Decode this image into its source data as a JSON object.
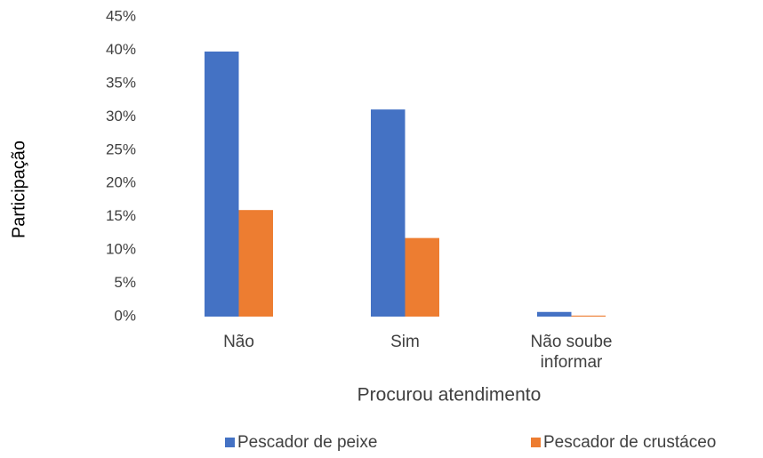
{
  "chart_data": {
    "type": "bar",
    "xlabel": "Procurou atendimento",
    "ylabel": "Participação",
    "categories": [
      "Não",
      "Sim",
      "Não soube informar"
    ],
    "series": [
      {
        "name": "Pescador de peixe",
        "color": "#4472c4",
        "values": [
          39.8,
          31.1,
          0.7
        ]
      },
      {
        "name": "Pescador de crustáceo",
        "color": "#ed7d31",
        "values": [
          16.0,
          11.8,
          0.15
        ]
      }
    ],
    "ylim": [
      0,
      45
    ],
    "yticks": [
      {
        "value": 0,
        "label": "0%"
      },
      {
        "value": 5,
        "label": "5%"
      },
      {
        "value": 10,
        "label": "10%"
      },
      {
        "value": 15,
        "label": "15%"
      },
      {
        "value": 20,
        "label": "20%"
      },
      {
        "value": 25,
        "label": "25%"
      },
      {
        "value": 30,
        "label": "30%"
      },
      {
        "value": 35,
        "label": "35%"
      },
      {
        "value": 40,
        "label": "40%"
      },
      {
        "value": 45,
        "label": "45%"
      }
    ],
    "grid": false,
    "legend": "bottom"
  }
}
